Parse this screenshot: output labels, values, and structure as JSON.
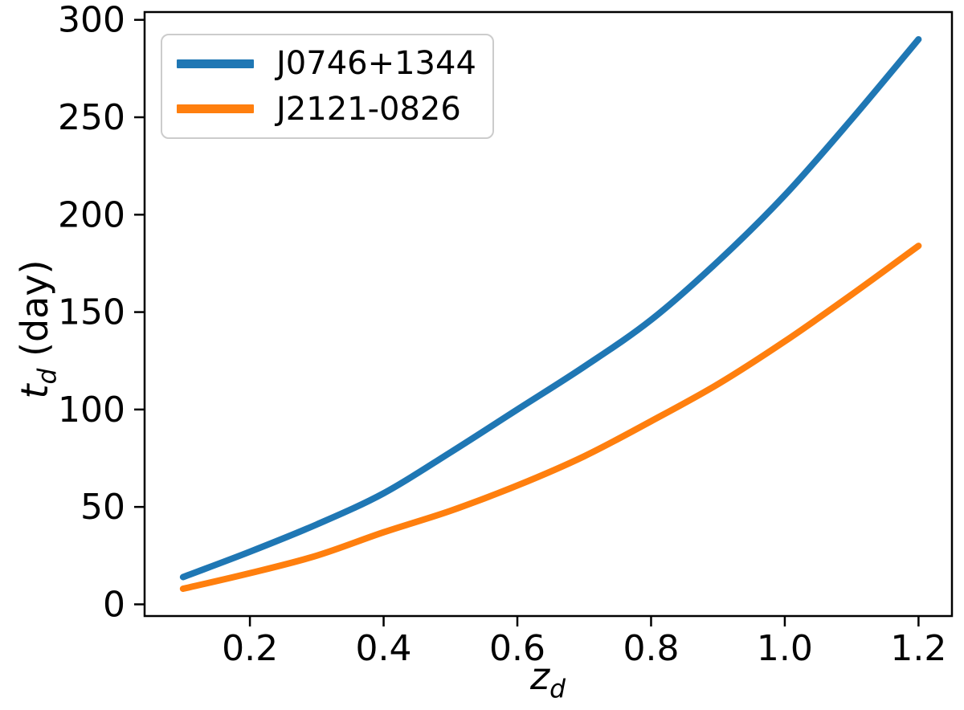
{
  "chart_data": {
    "type": "line",
    "title": "",
    "xlabel_parts": {
      "main": "z",
      "sub": "d"
    },
    "ylabel_parts": {
      "main": "t",
      "sub": "d",
      "rest": " (day)"
    },
    "x": [
      0.1,
      0.2,
      0.3,
      0.4,
      0.5,
      0.6,
      0.7,
      0.8,
      0.9,
      1.0,
      1.1,
      1.2
    ],
    "series": [
      {
        "name": "J0746+1344",
        "color": "#1f77b4",
        "values": [
          14,
          27,
          41,
          57,
          78,
          100,
          122,
          146,
          176,
          210,
          249,
          290
        ]
      },
      {
        "name": "J2121-0826",
        "color": "#ff7f0e",
        "values": [
          8,
          16,
          25,
          37,
          48,
          61,
          76,
          94,
          113,
          135,
          159,
          184
        ]
      }
    ],
    "xlim": [
      0.0425,
      1.25
    ],
    "ylim": [
      -6,
      304
    ],
    "x_ticks": [
      0.2,
      0.4,
      0.6,
      0.8,
      1.0,
      1.2
    ],
    "x_tick_labels": [
      "0.2",
      "0.4",
      "0.6",
      "0.8",
      "1.0",
      "1.2"
    ],
    "y_ticks": [
      0,
      50,
      100,
      150,
      200,
      250,
      300
    ],
    "y_tick_labels": [
      "0",
      "50",
      "100",
      "150",
      "200",
      "250",
      "300"
    ],
    "grid": false,
    "legend_position": "upper-left",
    "axis_color": "#000000",
    "background_color": "#ffffff",
    "line_width": 8
  }
}
